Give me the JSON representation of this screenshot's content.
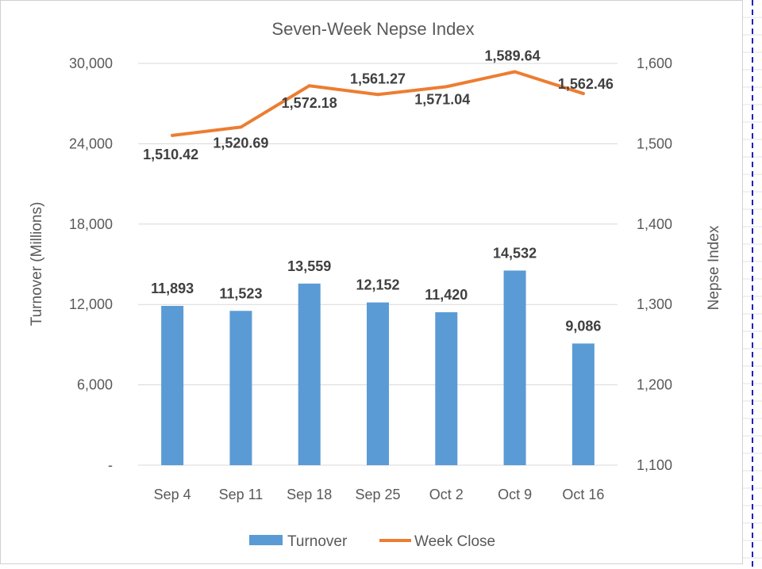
{
  "colors": {
    "bar": "#5b9bd5",
    "line": "#ed7d31",
    "grid": "#d9d9d9",
    "text": "#595959",
    "label": "#404040",
    "dashed_border": "#1f1fbf"
  },
  "chart_data": {
    "type": "bar+line",
    "title": "Seven-Week Nepse Index",
    "categories": [
      "Sep 4",
      "Sep 11",
      "Sep 18",
      "Sep 25",
      "Oct 2",
      "Oct 9",
      "Oct 16"
    ],
    "series": [
      {
        "name": "Turnover",
        "type": "bar",
        "axis": "left",
        "values": [
          11893,
          11523,
          13559,
          12152,
          11420,
          14532,
          9086
        ],
        "labels": [
          "11,893",
          "11,523",
          "13,559",
          "12,152",
          "11,420",
          "14,532",
          "9,086"
        ]
      },
      {
        "name": "Week Close",
        "type": "line",
        "axis": "right",
        "values": [
          1510.42,
          1520.69,
          1572.18,
          1561.27,
          1571.04,
          1589.64,
          1562.46
        ],
        "labels": [
          "1,510.42",
          "1,520.69",
          "1,572.18",
          "1,561.27",
          "1,571.04",
          "1,589.64",
          "1,562.46"
        ]
      }
    ],
    "left_axis": {
      "title": "Turnover (Millions)",
      "ylim": [
        0,
        30000
      ],
      "ticks": [
        0,
        6000,
        12000,
        18000,
        24000,
        30000
      ],
      "tick_labels": [
        "-",
        "6,000",
        "12,000",
        "18,000",
        "24,000",
        "30,000"
      ]
    },
    "right_axis": {
      "title": "Nepse Index",
      "ylim": [
        1100,
        1600
      ],
      "ticks": [
        1100,
        1200,
        1300,
        1400,
        1500,
        1600
      ],
      "tick_labels": [
        "1,100",
        "1,200",
        "1,300",
        "1,400",
        "1,500",
        "1,600"
      ]
    },
    "grid": true,
    "legend": {
      "position": "bottom",
      "entries": [
        "Turnover",
        "Week Close"
      ]
    }
  }
}
